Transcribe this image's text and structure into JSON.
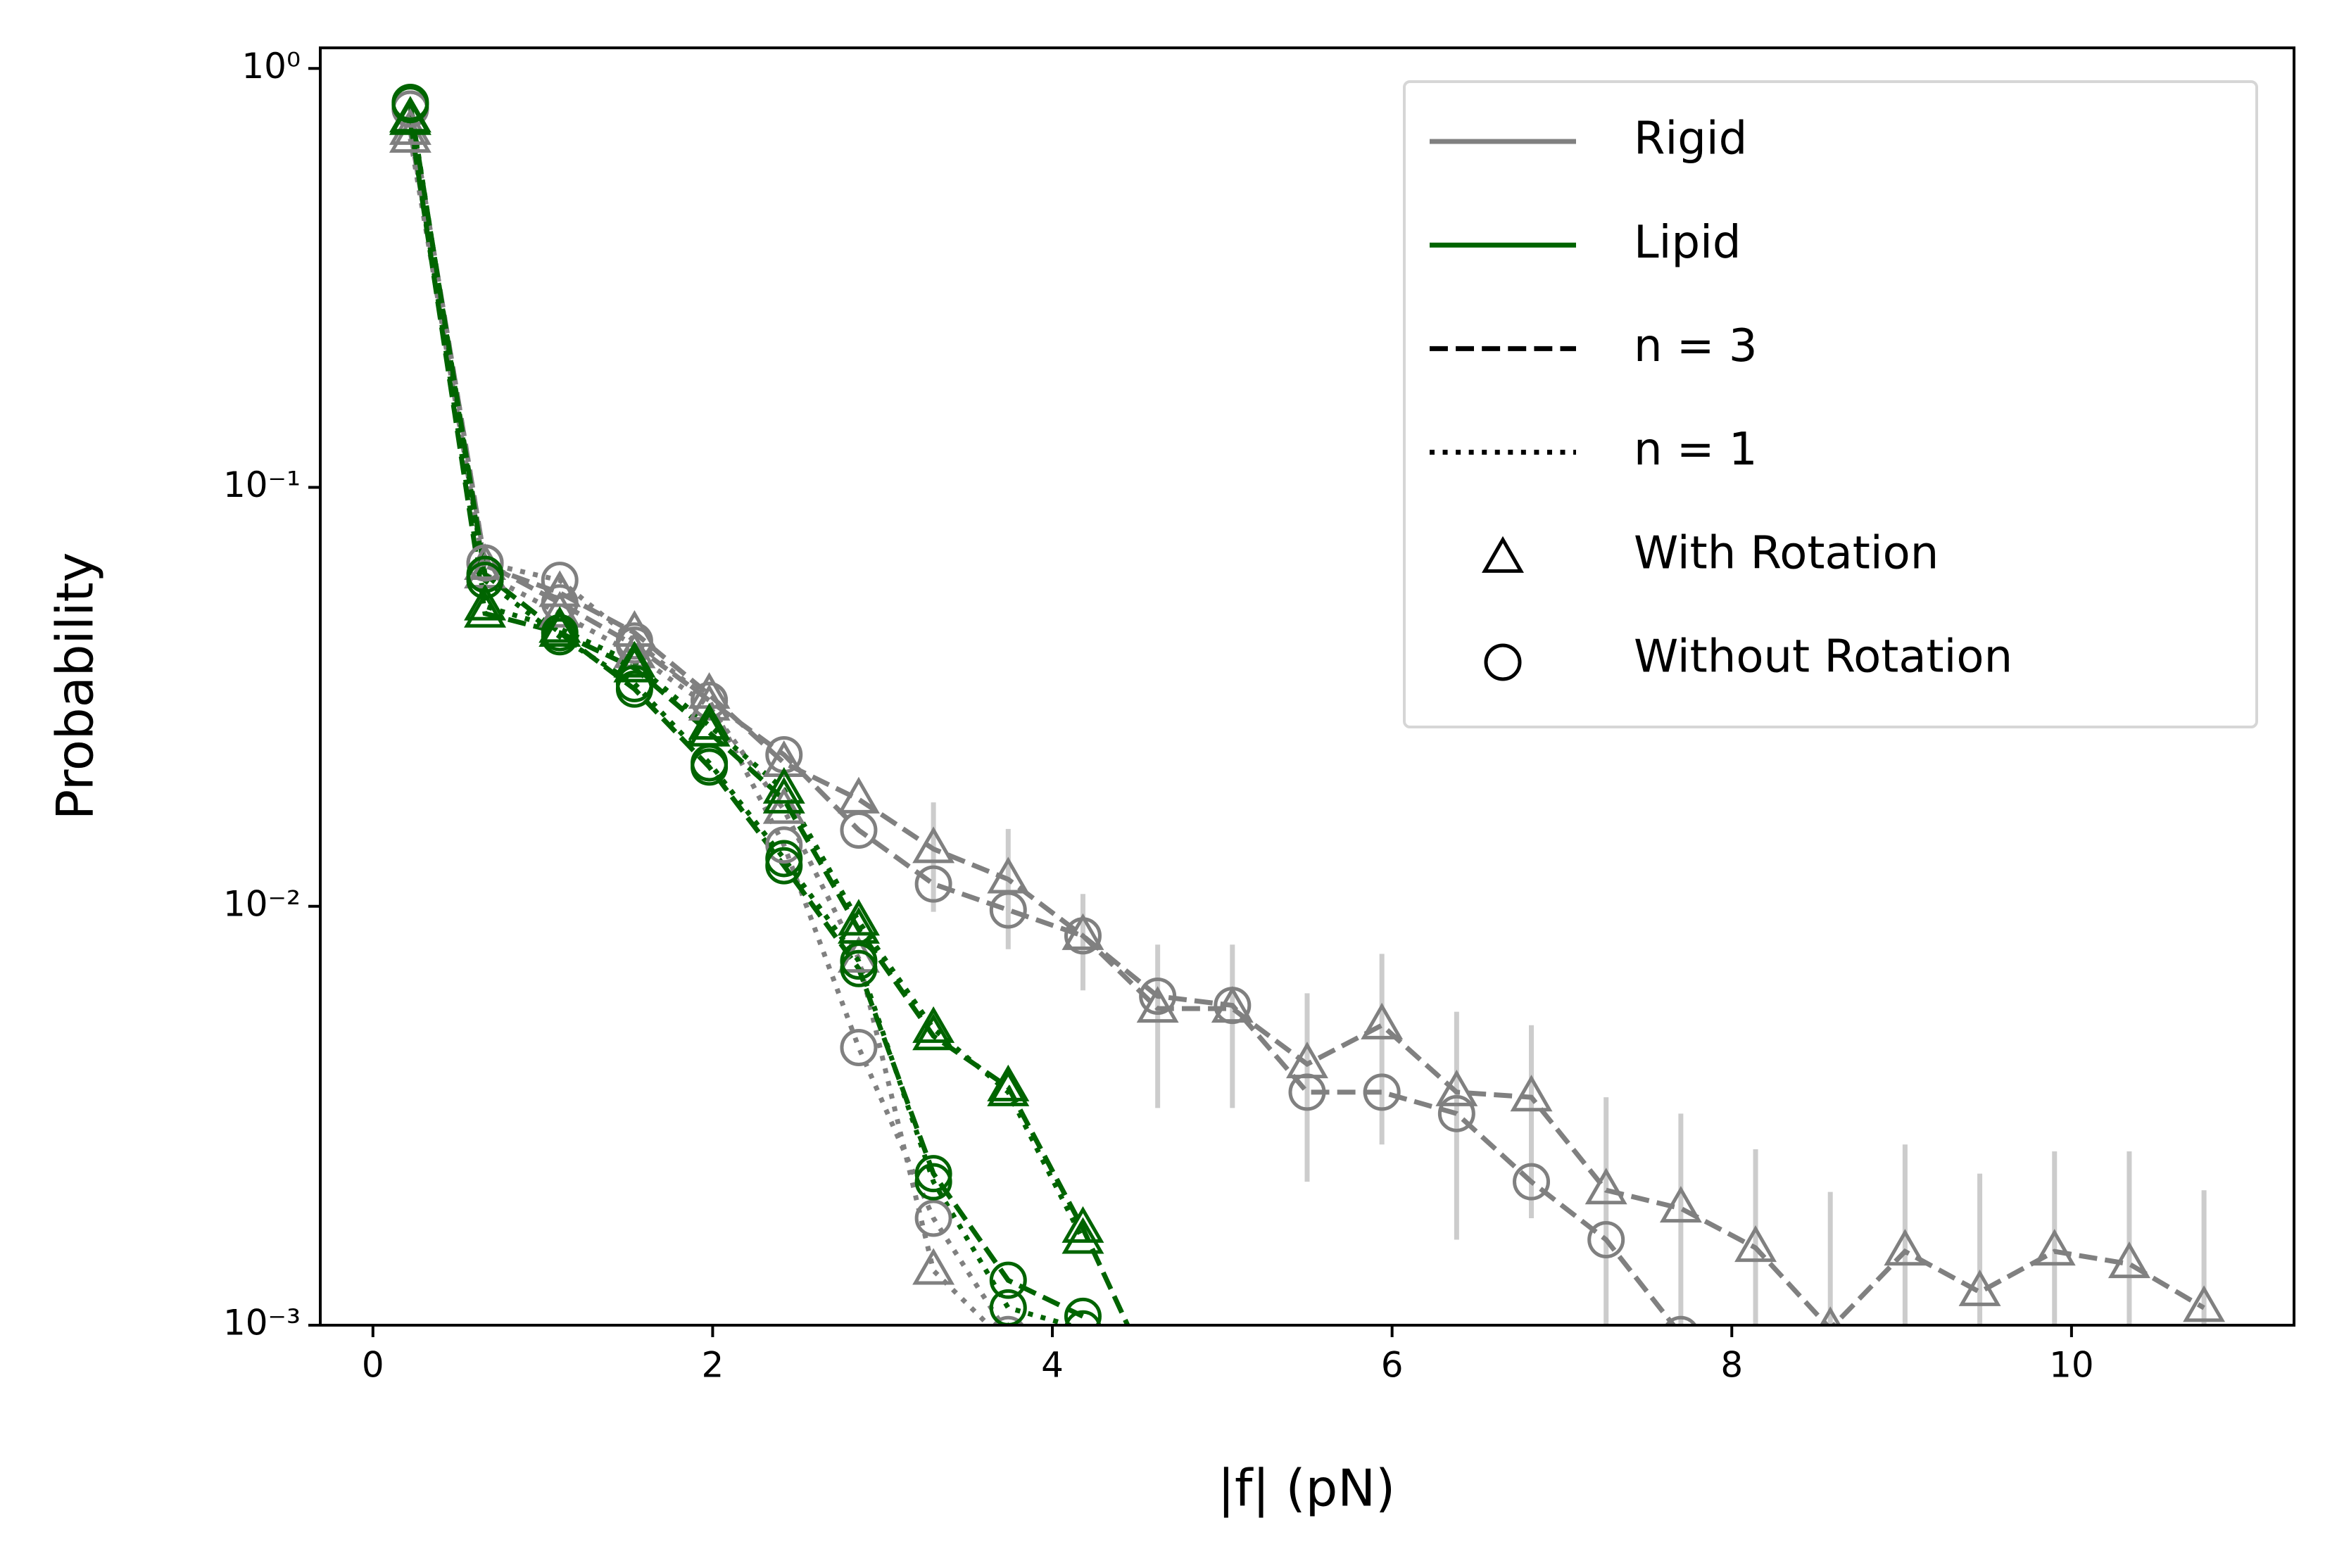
{
  "chart_data": {
    "type": "line",
    "xlabel": "|f| (pN)",
    "ylabel": "Probability",
    "log_y": true,
    "x": [
      0.22,
      0.66,
      1.1,
      1.54,
      1.98,
      2.42,
      2.86,
      3.3,
      3.74,
      4.18,
      4.62,
      5.06,
      5.5,
      5.94,
      6.38,
      6.82,
      7.26,
      7.7,
      8.14,
      8.58,
      9.02,
      9.46,
      9.9,
      10.34,
      10.78
    ],
    "xlim": [
      -0.31,
      11.31
    ],
    "xticks": [
      0,
      2,
      4,
      6,
      8,
      10
    ],
    "ylim": [
      0.001,
      1.12
    ],
    "yticks": [
      {
        "value": 1,
        "label": "10⁰"
      },
      {
        "value": 0.1,
        "label": "10⁻¹"
      },
      {
        "value": 0.01,
        "label": "10⁻²"
      },
      {
        "value": 0.001,
        "label": "10⁻³"
      }
    ],
    "error_color": "#cccccc",
    "series": [
      {
        "color": "#808080",
        "dash": "dashed",
        "marker": "triangle",
        "values": [
          0.71,
          0.065,
          0.056,
          0.045,
          0.032,
          0.022,
          0.018,
          0.0137,
          0.0116,
          0.0085,
          0.0057,
          0.0057,
          0.0042,
          0.0052,
          0.0036,
          0.0035,
          0.0021,
          0.0019,
          0.00153,
          0.00098,
          0.0015,
          0.0012,
          0.0015,
          0.0014,
          0.0011
        ],
        "errors": [
          null,
          null,
          null,
          null,
          null,
          null,
          null,
          0.004,
          0.0037,
          0.0022,
          0.0024,
          0.0024,
          0.002,
          0.0025,
          0.002,
          0.0017,
          0.0014,
          0.0013,
          0.0011,
          0.0011,
          0.0012,
          0.0011,
          0.0011,
          0.0012,
          0.001
        ]
      },
      {
        "color": "#808080",
        "dash": "dashed",
        "marker": "circle",
        "values": [
          0.8,
          0.066,
          0.053,
          0.042,
          0.031,
          0.023,
          0.0152,
          0.0113,
          0.0098,
          0.0085,
          0.0061,
          0.0058,
          0.0036,
          0.0036,
          0.0032,
          0.0022,
          0.0016,
          0.00095,
          null,
          null,
          null,
          null,
          null,
          null,
          null
        ]
      },
      {
        "color": "#808080",
        "dash": "dotted",
        "marker": "triangle",
        "values": [
          0.68,
          0.062,
          0.05,
          0.04,
          0.03,
          0.017,
          0.0075,
          0.00135,
          0.0009,
          null,
          null,
          null,
          null,
          null,
          null,
          null,
          null,
          null,
          null,
          null,
          null,
          null,
          null,
          null,
          null
        ]
      },
      {
        "color": "#808080",
        "dash": "dotted",
        "marker": "circle",
        "values": [
          0.8,
          0.066,
          0.06,
          0.043,
          0.031,
          0.014,
          0.0046,
          0.0018,
          0.00095,
          null,
          null,
          null,
          null,
          null,
          null,
          null,
          null,
          null,
          null,
          null,
          null,
          null,
          null,
          null,
          null
        ]
      },
      {
        "color": "#006400",
        "dash": "dashed",
        "marker": "triangle",
        "values": [
          0.75,
          0.05,
          0.045,
          0.037,
          0.026,
          0.018,
          0.0088,
          0.0049,
          0.0037,
          0.0017,
          0.0007,
          null,
          null,
          null,
          null,
          null,
          null,
          null,
          null,
          null,
          null,
          null,
          null,
          null,
          null
        ]
      },
      {
        "color": "#006400",
        "dash": "dashed",
        "marker": "circle",
        "values": [
          0.82,
          0.062,
          0.045,
          0.033,
          0.0215,
          0.0125,
          0.0071,
          0.0023,
          0.00128,
          0.00105,
          null,
          null,
          null,
          null,
          null,
          null,
          null,
          null,
          null,
          null,
          null,
          null,
          null,
          null,
          null
        ]
      },
      {
        "color": "#006400",
        "dash": "dotted",
        "marker": "triangle",
        "values": [
          0.76,
          0.052,
          0.046,
          0.038,
          0.027,
          0.019,
          0.0092,
          0.0051,
          0.0036,
          0.0016,
          null,
          null,
          null,
          null,
          null,
          null,
          null,
          null,
          null,
          null,
          null,
          null,
          null,
          null,
          null
        ]
      },
      {
        "color": "#006400",
        "dash": "dotted",
        "marker": "circle",
        "values": [
          0.83,
          0.06,
          0.044,
          0.034,
          0.022,
          0.013,
          0.0074,
          0.0022,
          0.0011,
          0.00098,
          null,
          null,
          null,
          null,
          null,
          null,
          null,
          null,
          null,
          null,
          null,
          null,
          null,
          null,
          null
        ]
      }
    ],
    "legend": [
      {
        "label": "Rigid",
        "color": "#808080",
        "dash": "solid"
      },
      {
        "label": "Lipid",
        "color": "#006400",
        "dash": "solid"
      },
      {
        "label": "n = 3",
        "color": "#000000",
        "dash": "dashed"
      },
      {
        "label": "n = 1",
        "color": "#000000",
        "dash": "dotted"
      },
      {
        "label": "With Rotation",
        "color": "#000000",
        "marker": "triangle"
      },
      {
        "label": "Without Rotation",
        "color": "#000000",
        "marker": "circle"
      }
    ],
    "legend_loc": "upper right"
  }
}
